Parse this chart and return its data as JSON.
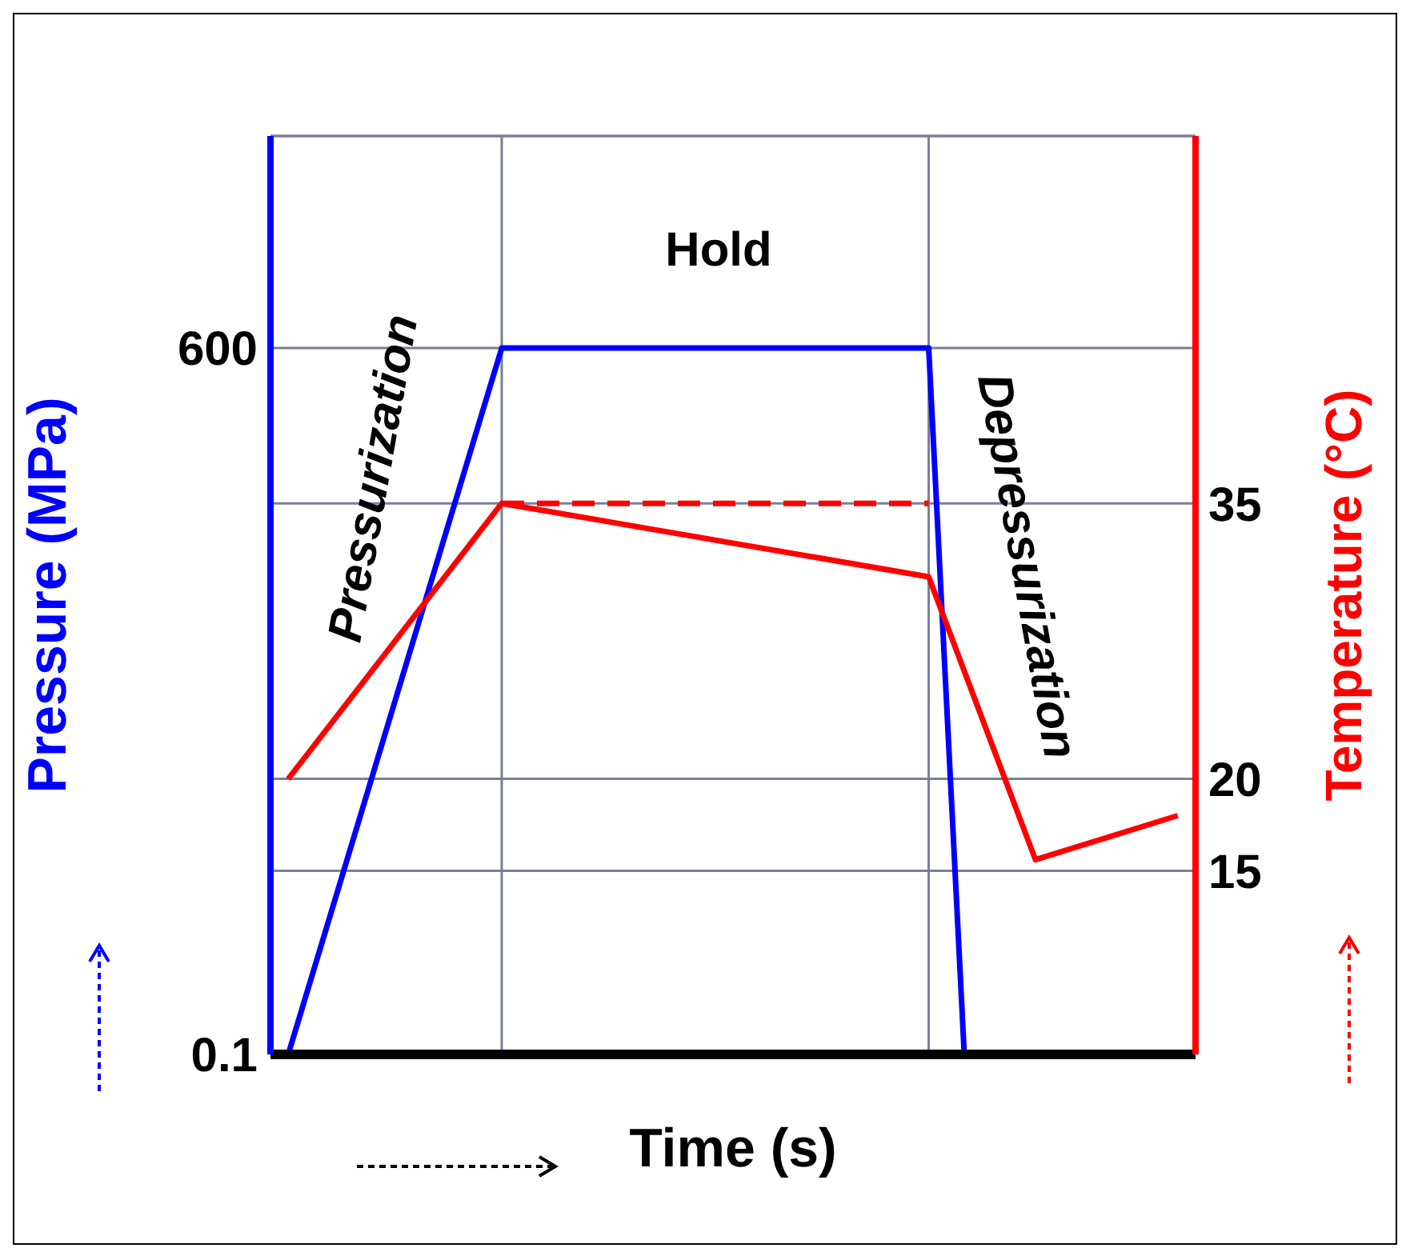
{
  "chart_data": {
    "type": "line",
    "xlabel": "Time (s)",
    "ylabel": "Pressure (MPa)",
    "y2label": "Temperature (°C)",
    "annotations": [
      "Pressurization",
      "Hold",
      "Depressurization"
    ],
    "categories": [
      null,
      null,
      null,
      null,
      null,
      null,
      null,
      null,
      null,
      null,
      null,
      null,
      null,
      null,
      null,
      null,
      null,
      null,
      null,
      null,
      null,
      null,
      null,
      null,
      null,
      null
    ],
    "ylim": [
      0,
      780
    ],
    "yticks": [
      0.1,
      600
    ],
    "y2lim": [
      5,
      55
    ],
    "y2ticks": [
      15,
      20,
      35
    ],
    "grid": "y",
    "marker": "none",
    "series": [
      {
        "color": "#0000ff",
        "values": [
          0.1,
          null,
          null,
          null,
          null,
          null,
          600,
          null,
          null,
          null,
          null,
          null,
          null,
          null,
          null,
          null,
          null,
          null,
          600,
          0.1,
          null,
          null,
          null,
          null,
          null,
          null
        ]
      },
      {
        "color": "#ff0000",
        "axis": "y2",
        "values": [
          20,
          null,
          null,
          null,
          null,
          null,
          35,
          null,
          null,
          null,
          null,
          null,
          null,
          null,
          null,
          null,
          null,
          null,
          31,
          null,
          null,
          15.6,
          null,
          null,
          null,
          18
        ]
      },
      {
        "color": "#ff0000",
        "axis": "y2",
        "line_style": "dashed",
        "values": [
          null,
          null,
          null,
          null,
          null,
          null,
          35,
          null,
          null,
          null,
          null,
          null,
          null,
          null,
          null,
          null,
          null,
          null,
          35,
          null,
          null,
          null,
          null,
          null,
          null,
          null
        ]
      }
    ]
  }
}
